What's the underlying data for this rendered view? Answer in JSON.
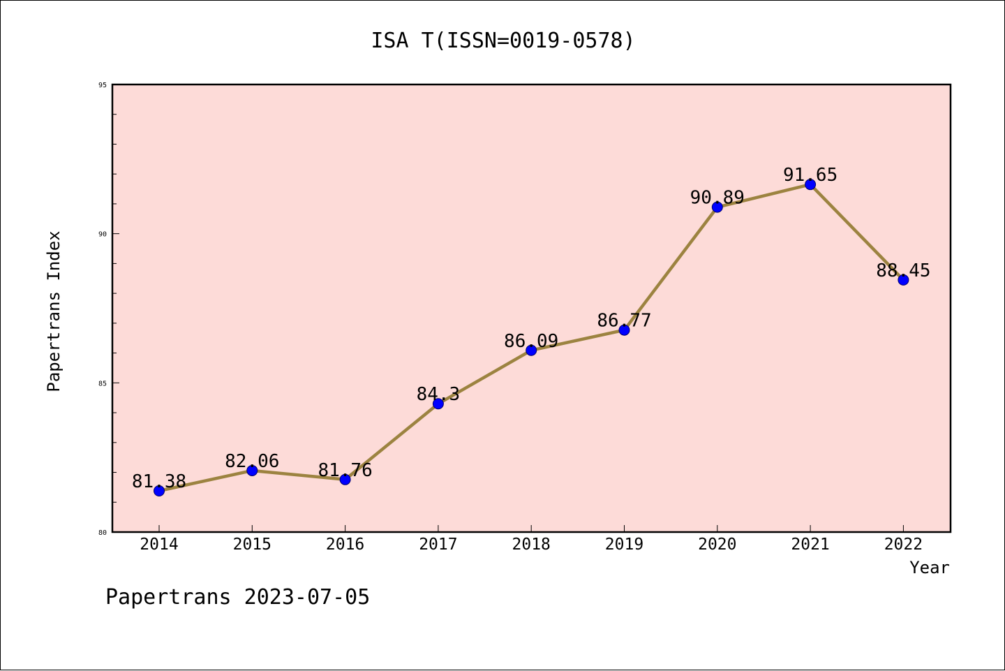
{
  "chart_data": {
    "type": "line",
    "title": "ISA T(ISSN=0019-0578)",
    "xlabel": "Year",
    "ylabel": "Papertrans Index",
    "categories": [
      "2014",
      "2015",
      "2016",
      "2017",
      "2018",
      "2019",
      "2020",
      "2021",
      "2022"
    ],
    "series": [
      {
        "values": [
          81.38,
          82.06,
          81.76,
          84.3,
          86.09,
          86.77,
          90.89,
          91.65,
          88.45
        ],
        "labels": [
          "81.38",
          "82.06",
          "81.76",
          "84.3",
          "86.09",
          "86.77",
          "90.89",
          "91.65",
          "88.45"
        ]
      }
    ],
    "ylim": [
      80,
      95
    ],
    "yticks": [
      "80",
      "85",
      "90",
      "95"
    ],
    "grid": false,
    "legend": "none",
    "colors": {
      "plot_background": "#fddbd8",
      "line": "#9c8340",
      "marker": "#0000ff",
      "marker_edge": "#00006a"
    }
  },
  "footer": {
    "text": "Papertrans 2023-07-05"
  }
}
